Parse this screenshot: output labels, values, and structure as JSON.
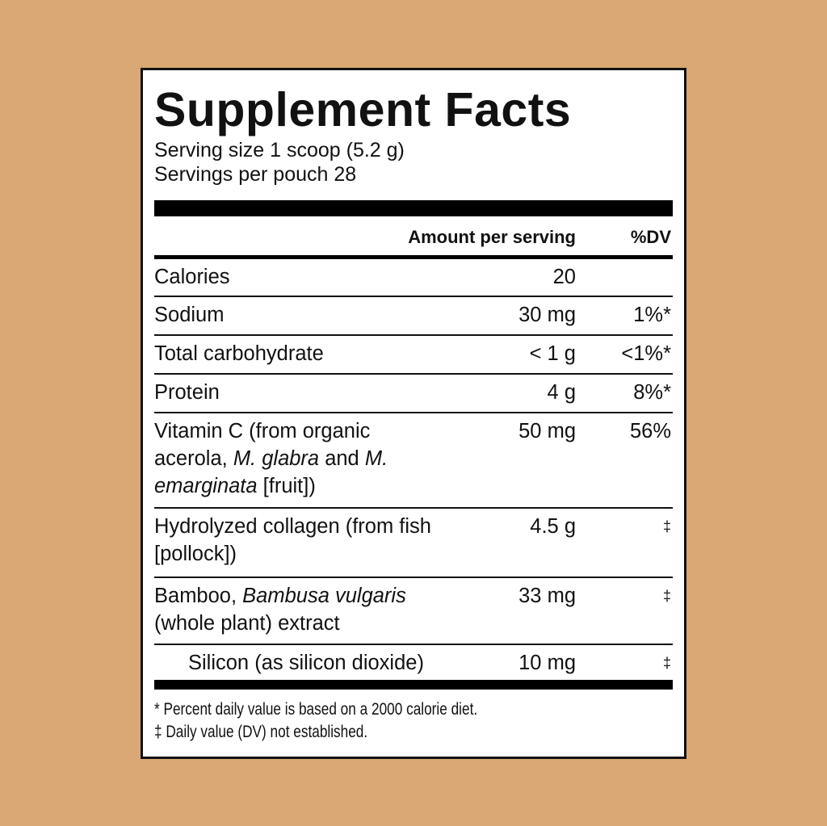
{
  "title": "Supplement Facts",
  "serving_size": "Serving size 1 scoop (5.2 g)",
  "servings_per": "Servings per pouch 28",
  "header": {
    "amount": "Amount per serving",
    "dv": "%DV"
  },
  "rows": [
    {
      "name": "Calories",
      "amount": "20",
      "dv": ""
    },
    {
      "name": "Sodium",
      "amount": "30 mg",
      "dv": "1%*"
    },
    {
      "name": "Total carbohydrate",
      "amount": "< 1 g",
      "dv": "<1%*"
    },
    {
      "name": "Protein",
      "amount": "4 g",
      "dv": "8%*"
    },
    {
      "name_parts": [
        "Vitamin C (from organic acerola, ",
        "M. glabra",
        " and ",
        "M. emarginata",
        " [fruit])"
      ],
      "amount": "50 mg",
      "dv": "56%"
    },
    {
      "name": "Hydrolyzed collagen (from fish [pollock])",
      "amount": "4.5 g",
      "dv": "‡"
    },
    {
      "name_parts": [
        "Bamboo, ",
        "Bambusa vulgaris",
        " (whole plant) extract"
      ],
      "amount": "33 mg",
      "dv": "‡"
    },
    {
      "name": "Silicon (as silicon dioxide)",
      "amount": "10 mg",
      "dv": "‡"
    }
  ],
  "footnotes": [
    "* Percent daily value is based on a 2000 calorie diet.",
    "‡ Daily value (DV) not established."
  ],
  "colors": {
    "background": "#d9a874",
    "panel": "#ffffff",
    "ink": "#111111"
  }
}
